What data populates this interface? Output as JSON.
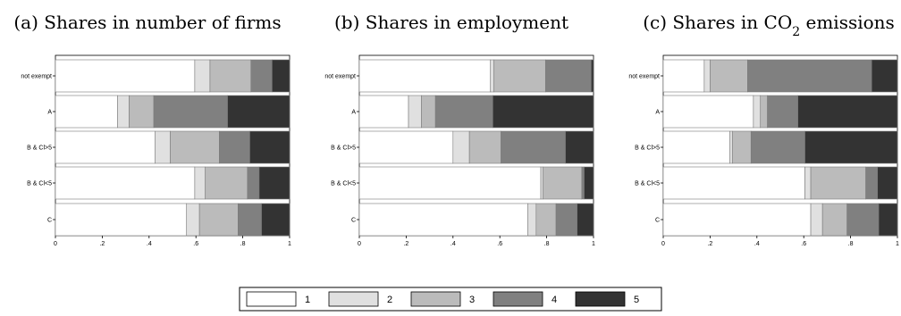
{
  "chart_data": [
    {
      "type": "bar",
      "orientation": "horizontal",
      "stacked": true,
      "title": "(a) Shares in number of firms",
      "categories": [
        "not exempt",
        "A",
        "B & Cl>5",
        "B & Cl<5",
        "C"
      ],
      "xlim": [
        0,
        1
      ],
      "xticks": [
        "0",
        ".2",
        ".4",
        ".6",
        ".8",
        "1"
      ],
      "grid": false,
      "series": [
        {
          "name": "1",
          "values": [
            0.595,
            0.265,
            0.425,
            0.595,
            0.56
          ]
        },
        {
          "name": "2",
          "values": [
            0.065,
            0.05,
            0.065,
            0.045,
            0.055
          ]
        },
        {
          "name": "3",
          "values": [
            0.175,
            0.105,
            0.21,
            0.18,
            0.165
          ]
        },
        {
          "name": "4",
          "values": [
            0.09,
            0.315,
            0.13,
            0.05,
            0.1
          ]
        },
        {
          "name": "5",
          "values": [
            0.075,
            0.265,
            0.17,
            0.13,
            0.12
          ]
        }
      ]
    },
    {
      "type": "bar",
      "orientation": "horizontal",
      "stacked": true,
      "title": "(b) Shares in employment",
      "categories": [
        "not exempt",
        "A",
        "B & Cl>5",
        "B & Cl<5",
        "C"
      ],
      "xlim": [
        0,
        1
      ],
      "xticks": [
        "0",
        ".2",
        ".4",
        ".6",
        ".8",
        "1"
      ],
      "grid": false,
      "series": [
        {
          "name": "1",
          "values": [
            0.56,
            0.21,
            0.4,
            0.775,
            0.72
          ]
        },
        {
          "name": "2",
          "values": [
            0.015,
            0.055,
            0.07,
            0.01,
            0.035
          ]
        },
        {
          "name": "3",
          "values": [
            0.22,
            0.06,
            0.135,
            0.165,
            0.085
          ]
        },
        {
          "name": "4",
          "values": [
            0.195,
            0.245,
            0.275,
            0.01,
            0.09
          ]
        },
        {
          "name": "5",
          "values": [
            0.01,
            0.43,
            0.12,
            0.04,
            0.07
          ]
        }
      ]
    },
    {
      "type": "bar",
      "orientation": "horizontal",
      "stacked": true,
      "title": "(c) Shares in CO2 emissions",
      "categories": [
        "not exempt",
        "A",
        "B & Cl>5",
        "B & Cl<5",
        "C"
      ],
      "xlim": [
        0,
        1
      ],
      "xticks": [
        "0",
        ".2",
        ".4",
        ".6",
        ".8",
        "1"
      ],
      "grid": false,
      "series": [
        {
          "name": "1",
          "values": [
            0.175,
            0.385,
            0.285,
            0.605,
            0.63
          ]
        },
        {
          "name": "2",
          "values": [
            0.025,
            0.03,
            0.01,
            0.025,
            0.05
          ]
        },
        {
          "name": "3",
          "values": [
            0.16,
            0.03,
            0.08,
            0.235,
            0.105
          ]
        },
        {
          "name": "4",
          "values": [
            0.53,
            0.13,
            0.23,
            0.05,
            0.135
          ]
        },
        {
          "name": "5",
          "values": [
            0.11,
            0.425,
            0.395,
            0.085,
            0.08
          ]
        }
      ]
    }
  ],
  "legend": {
    "placement": "bottom-center",
    "items": [
      {
        "label": "1",
        "color": "#ffffff"
      },
      {
        "label": "2",
        "color": "#e0e0e0"
      },
      {
        "label": "3",
        "color": "#bbbbbb"
      },
      {
        "label": "4",
        "color": "#808080"
      },
      {
        "label": "5",
        "color": "#333333"
      }
    ]
  },
  "colors": {
    "segment_fills": [
      "#ffffff",
      "#e0e0e0",
      "#bbbbbb",
      "#808080",
      "#333333"
    ],
    "bar_stroke": "#7a7a7a",
    "axis": "#000000"
  }
}
